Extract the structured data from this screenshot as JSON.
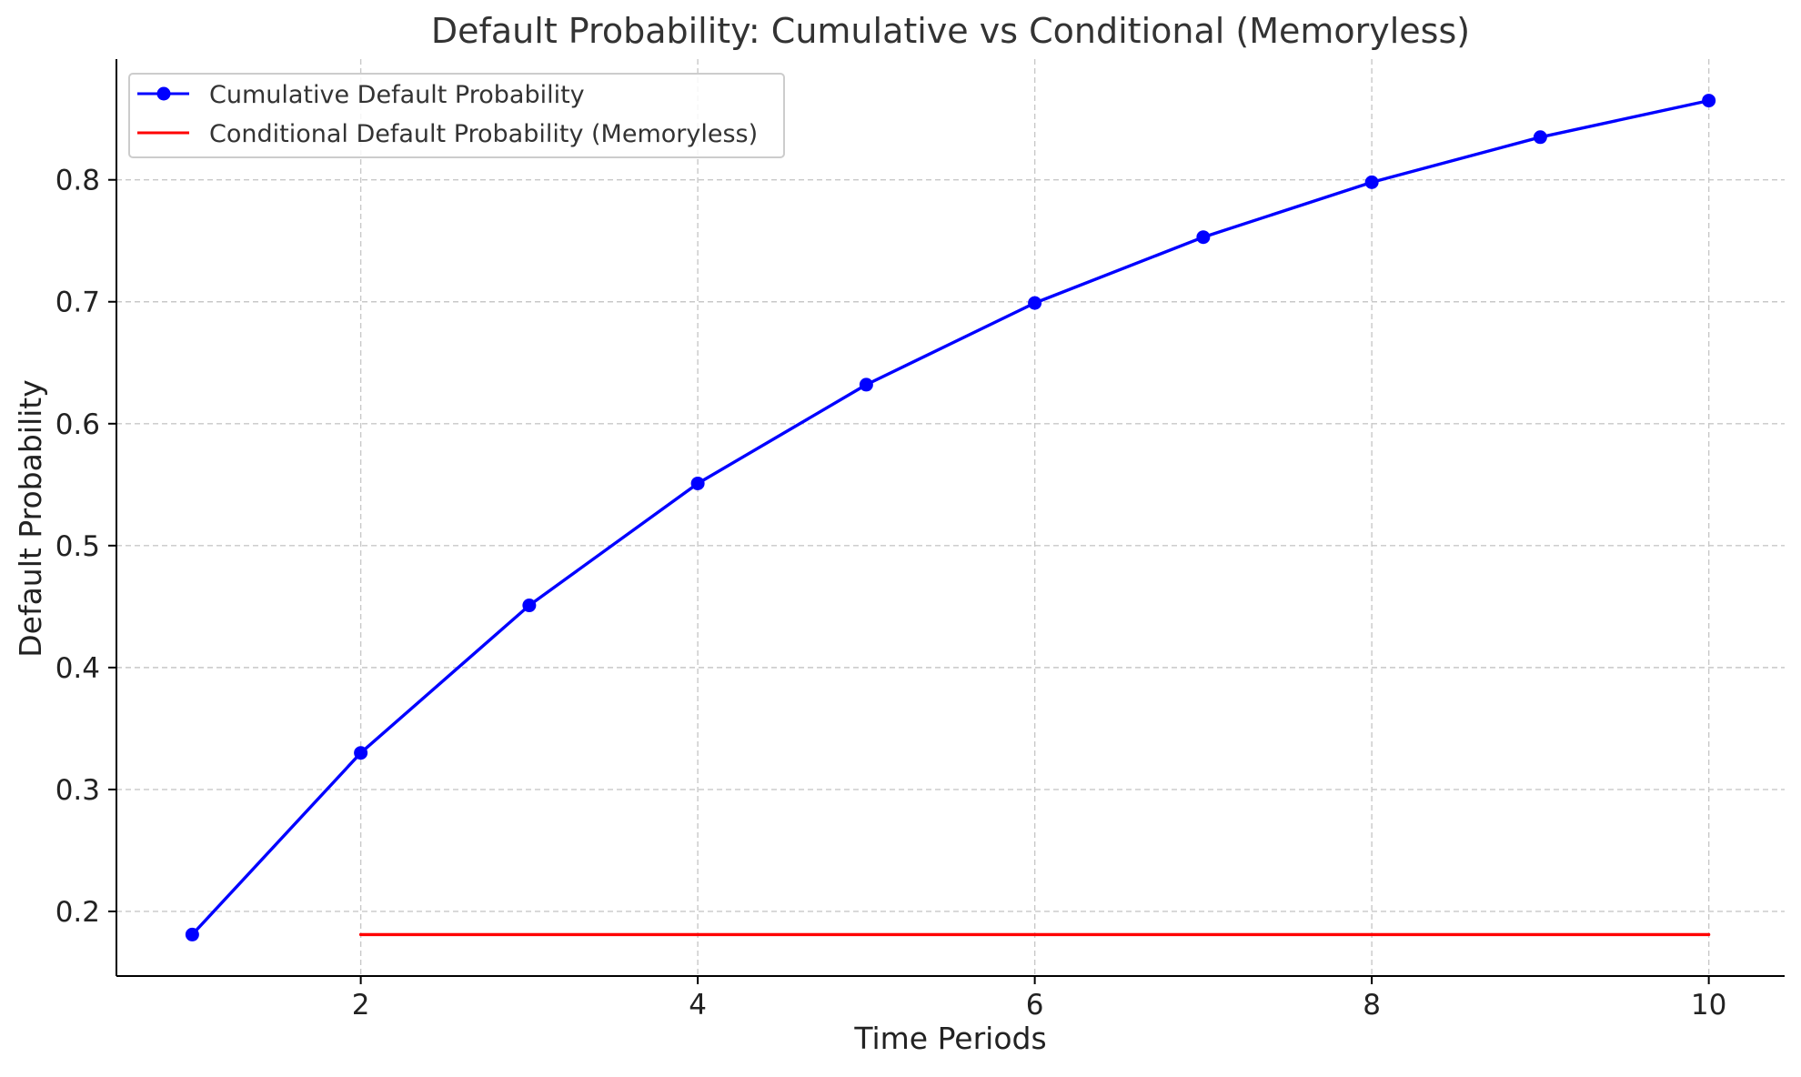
{
  "chart_data": {
    "type": "line",
    "title": "Default Probability: Cumulative vs Conditional (Memoryless)",
    "xlabel": "Time Periods",
    "ylabel": "Default Probability",
    "xlim": [
      0.55,
      10.45
    ],
    "ylim": [
      0.147,
      0.899
    ],
    "x_ticks": [
      2,
      4,
      6,
      8,
      10
    ],
    "y_ticks": [
      0.2,
      0.3,
      0.4,
      0.5,
      0.6,
      0.7,
      0.8
    ],
    "grid": true,
    "legend_position": "upper-left",
    "series": [
      {
        "name": "Cumulative Default Probability",
        "color": "#0000ff",
        "marker": "circle",
        "x": [
          1,
          2,
          3,
          4,
          5,
          6,
          7,
          8,
          9,
          10
        ],
        "y": [
          0.181,
          0.33,
          0.451,
          0.551,
          0.632,
          0.699,
          0.753,
          0.798,
          0.835,
          0.865
        ]
      },
      {
        "name": "Conditional Default Probability (Memoryless)",
        "color": "#ff0000",
        "marker": "none",
        "x": [
          2,
          3,
          4,
          5,
          6,
          7,
          8,
          9,
          10
        ],
        "y": [
          0.181,
          0.181,
          0.181,
          0.181,
          0.181,
          0.181,
          0.181,
          0.181,
          0.181
        ]
      }
    ]
  }
}
